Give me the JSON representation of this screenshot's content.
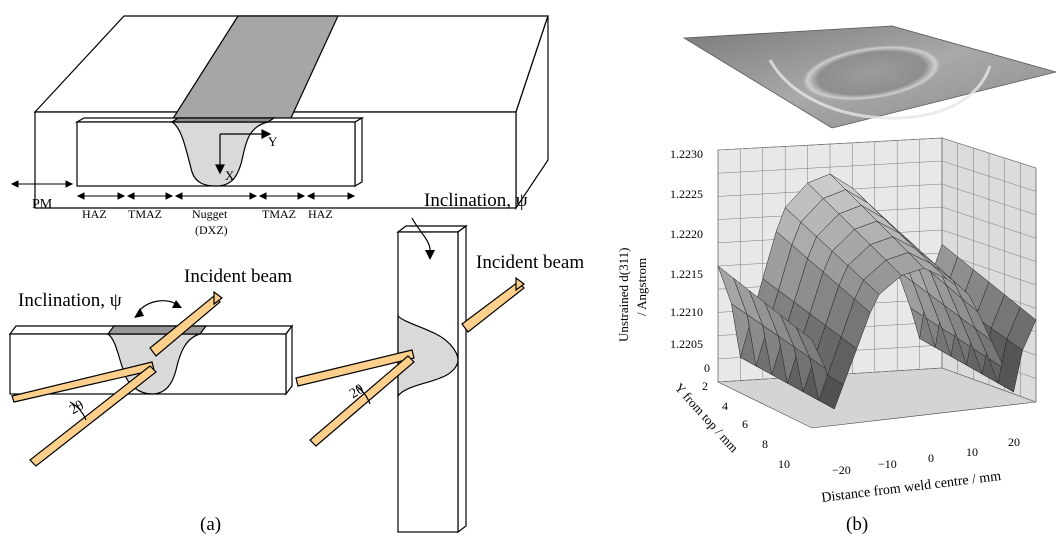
{
  "panel_a": {
    "top_view": {
      "axis_y": "Y",
      "axis_x": "X",
      "pm": "PM",
      "zones": [
        "HAZ",
        "TMAZ",
        "Nugget",
        "TMAZ",
        "HAZ"
      ],
      "nugget_sub": "(DXZ)"
    },
    "left_setup": {
      "inclination": "Inclination, ψ",
      "incident": "Incident beam",
      "two_theta": "2θ"
    },
    "right_setup": {
      "inclination": "Inclination, ψ",
      "incident": "Incident beam",
      "two_theta": "2θ"
    },
    "caption": "(a)"
  },
  "panel_b": {
    "caption": "(b)",
    "chart_data": {
      "type": "surface",
      "zlabel_line1": "Unstrained d(311)",
      "zlabel_line2": "/ Angstrom",
      "ylabel": "Y from top / mm",
      "xlabel": "Distance from weld centre / mm",
      "z_ticks": [
        "1.2230",
        "1.2225",
        "1.2220",
        "1.2215",
        "1.2210",
        "1.2205",
        "0"
      ],
      "y_ticks": [
        "2",
        "4",
        "6",
        "8",
        "10"
      ],
      "x_ticks": [
        "−20",
        "−10",
        "0",
        "10",
        "20"
      ],
      "zlim": [
        1.22,
        1.223
      ],
      "ylim": [
        0,
        10
      ],
      "xlim": [
        -25,
        25
      ],
      "grid": true,
      "surface_profile_x": [
        -25,
        -22,
        -20,
        -18,
        -15,
        -12,
        -10,
        -5,
        0,
        5,
        10,
        12,
        15,
        18,
        20,
        22,
        25
      ],
      "surface_profile_z": [
        1.2215,
        1.221,
        1.2203,
        1.2207,
        1.2213,
        1.2219,
        1.2222,
        1.2225,
        1.2226,
        1.2224,
        1.2221,
        1.2218,
        1.2213,
        1.2208,
        1.2204,
        1.2211,
        1.2216
      ]
    }
  }
}
